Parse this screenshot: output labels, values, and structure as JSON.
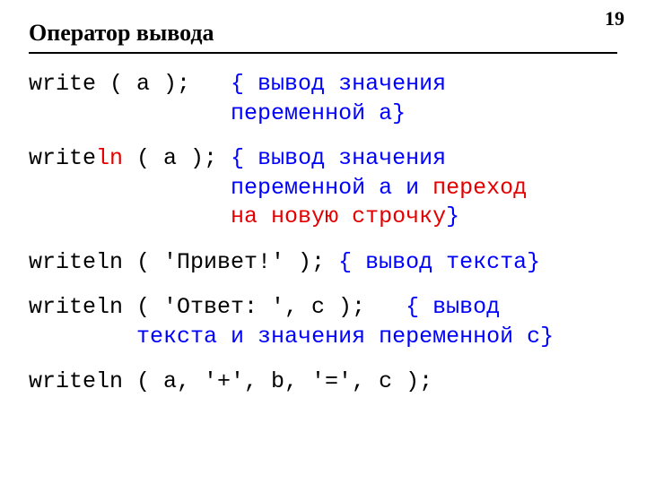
{
  "page_number": "19",
  "title": "Оператор вывода",
  "colors": {
    "black": "#000000",
    "red": "#e40000",
    "blue": "#0000ff",
    "rule": "#000000",
    "background": "#ffffff"
  },
  "typography": {
    "title_font": "Times New Roman",
    "code_font": "Courier New",
    "title_fontsize_pt": 20,
    "code_fontsize_pt": 18
  },
  "lines": {
    "b1_code": "write ( a );   ",
    "b1_c1": "{ вывод значения ",
    "b1_pad": "               ",
    "b1_c2": "переменной a}",
    "b2_w": "write",
    "b2_ln": "ln",
    "b2_rest": " ( a ); ",
    "b2_c1": "{ вывод значения ",
    "b2_pad": "               ",
    "b2_c2": "переменной a и ",
    "b2_c3": "переход ",
    "b2_pad2": "               ",
    "b2_c4": "на новую строчку",
    "b2_c5": "}",
    "b3_code": "writeln ( 'Привет!' ); ",
    "b3_c": "{ вывод текста}",
    "b4_code": "writeln ( 'Ответ: ', c );   ",
    "b4_c1": "{ вывод ",
    "b4_pad": "        ",
    "b4_c2": "текста и значения переменной c}",
    "b5_code": "writeln ( a, '+', b, '=', c );"
  }
}
